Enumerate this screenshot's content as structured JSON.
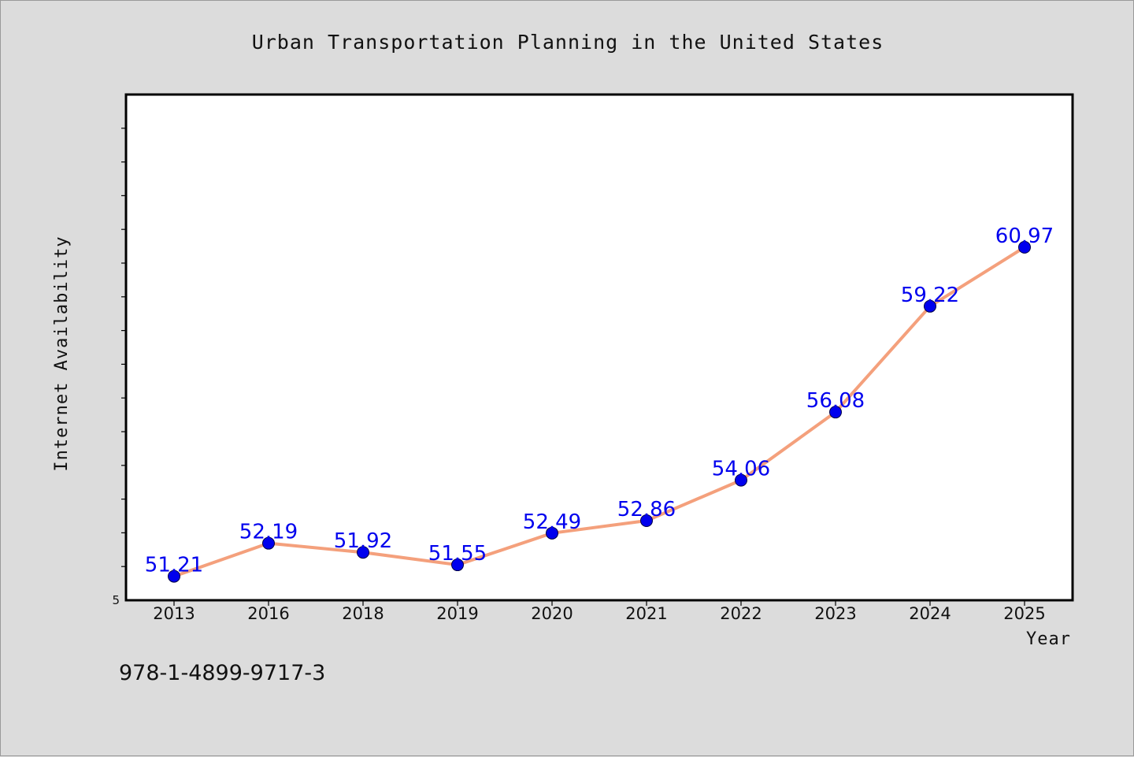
{
  "chart_data": {
    "type": "line",
    "title": "Urban Transportation Planning in the United States",
    "xlabel": "Year",
    "ylabel": "Internet Availability",
    "categories": [
      "2013",
      "2016",
      "2018",
      "2019",
      "2020",
      "2021",
      "2022",
      "2023",
      "2024",
      "2025"
    ],
    "series": [
      {
        "values": [
          51.21,
          52.19,
          51.92,
          51.55,
          52.49,
          52.86,
          54.06,
          56.08,
          59.22,
          60.97
        ],
        "data_labels": [
          "51.21",
          "52.19",
          "51.92",
          "51.55",
          "52.49",
          "52.86",
          "54.06",
          "56.08",
          "59.22",
          "60.97"
        ],
        "line_color": "#f4a07c",
        "marker_color": "#0000ee"
      }
    ],
    "ylim": [
      50.5,
      65.5
    ],
    "yticks": [
      {
        "value": 50.5,
        "label": "5"
      }
    ],
    "grid": false,
    "legend": "none"
  },
  "footer": {
    "isbn": "978-1-4899-9717-3"
  }
}
